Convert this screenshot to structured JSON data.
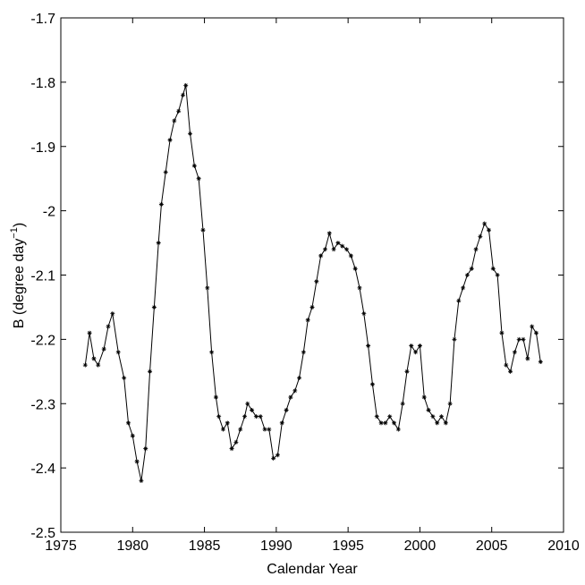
{
  "chart_data": {
    "type": "line",
    "xlabel": "Calendar Year",
    "ylabel": [
      "B (degree day",
      "−1",
      ")"
    ],
    "xlim": [
      1975,
      2010
    ],
    "xticks": [
      1975,
      1980,
      1985,
      1990,
      1995,
      2000,
      2005,
      2010
    ],
    "ylim": [
      -2.5,
      -1.7
    ],
    "yticks": [
      -2.5,
      -2.4,
      -2.3,
      -2.2,
      -2.1,
      -2,
      -1.9,
      -1.8,
      -1.7
    ],
    "series": [
      {
        "color": "#000000",
        "x": [
          1976.7,
          1977,
          1977.3,
          1977.6,
          1978,
          1978.3,
          1978.6,
          1979,
          1979.4,
          1979.7,
          1980,
          1980.3,
          1980.6,
          1980.9,
          1981.2,
          1981.5,
          1981.8,
          1982,
          1982.3,
          1982.6,
          1982.9,
          1983.2,
          1983.5,
          1983.7,
          1984,
          1984.3,
          1984.6,
          1984.9,
          1985.2,
          1985.5,
          1985.8,
          1986,
          1986.3,
          1986.6,
          1986.9,
          1987.2,
          1987.5,
          1987.8,
          1988,
          1988.3,
          1988.6,
          1988.9,
          1989.2,
          1989.5,
          1989.8,
          1990.1,
          1990.4,
          1990.7,
          1991,
          1991.3,
          1991.6,
          1991.9,
          1992.2,
          1992.5,
          1992.8,
          1993.1,
          1993.4,
          1993.7,
          1994,
          1994.3,
          1994.6,
          1994.9,
          1995.2,
          1995.5,
          1995.8,
          1996.1,
          1996.4,
          1996.7,
          1997,
          1997.3,
          1997.6,
          1997.9,
          1998.2,
          1998.5,
          1998.8,
          1999.1,
          1999.4,
          1999.7,
          2000,
          2000.3,
          2000.6,
          2000.9,
          2001.2,
          2001.5,
          2001.8,
          2002.1,
          2002.4,
          2002.7,
          2003,
          2003.3,
          2003.6,
          2003.9,
          2004.2,
          2004.5,
          2004.8,
          2005.1,
          2005.4,
          2005.7,
          2006,
          2006.3,
          2006.6,
          2006.9,
          2007.2,
          2007.5,
          2007.8,
          2008.1,
          2008.4
        ],
        "values": [
          -2.24,
          -2.19,
          -2.23,
          -2.24,
          -2.215,
          -2.18,
          -2.16,
          -2.22,
          -2.26,
          -2.33,
          -2.35,
          -2.39,
          -2.42,
          -2.37,
          -2.25,
          -2.15,
          -2.05,
          -1.99,
          -1.94,
          -1.89,
          -1.86,
          -1.845,
          -1.82,
          -1.805,
          -1.88,
          -1.93,
          -1.95,
          -2.03,
          -2.12,
          -2.22,
          -2.29,
          -2.32,
          -2.34,
          -2.33,
          -2.37,
          -2.36,
          -2.34,
          -2.32,
          -2.3,
          -2.31,
          -2.32,
          -2.32,
          -2.34,
          -2.34,
          -2.385,
          -2.38,
          -2.33,
          -2.31,
          -2.29,
          -2.28,
          -2.26,
          -2.22,
          -2.17,
          -2.15,
          -2.11,
          -2.07,
          -2.06,
          -2.035,
          -2.06,
          -2.05,
          -2.055,
          -2.06,
          -2.07,
          -2.09,
          -2.12,
          -2.16,
          -2.21,
          -2.27,
          -2.32,
          -2.33,
          -2.33,
          -2.32,
          -2.33,
          -2.34,
          -2.3,
          -2.25,
          -2.21,
          -2.22,
          -2.21,
          -2.29,
          -2.31,
          -2.32,
          -2.33,
          -2.32,
          -2.33,
          -2.3,
          -2.2,
          -2.14,
          -2.12,
          -2.1,
          -2.09,
          -2.06,
          -2.04,
          -2.02,
          -2.03,
          -2.09,
          -2.1,
          -2.19,
          -2.24,
          -2.25,
          -2.22,
          -2.2,
          -2.2,
          -2.23,
          -2.18,
          -2.19,
          -2.235
        ]
      }
    ]
  }
}
